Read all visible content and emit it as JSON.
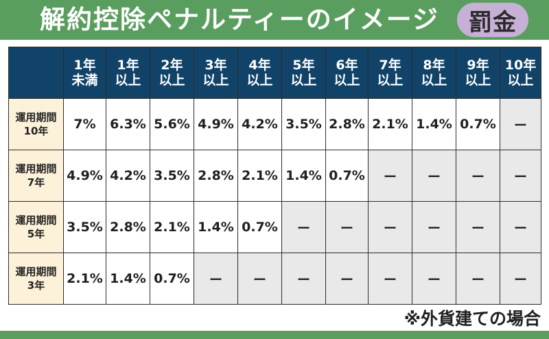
{
  "header": {
    "title": "解約控除ペナルティーのイメージ",
    "badge": "罰金",
    "banner_color": "#5a9e5f",
    "badge_color": "#c7b0d6"
  },
  "table": {
    "header_color": "#114369",
    "row_header_color": "#fdf1d9",
    "empty_cell_color": "#e9e9e9",
    "columns": [
      [
        "1年",
        "未満"
      ],
      [
        "1年",
        "以上"
      ],
      [
        "2年",
        "以上"
      ],
      [
        "3年",
        "以上"
      ],
      [
        "4年",
        "以上"
      ],
      [
        "5年",
        "以上"
      ],
      [
        "6年",
        "以上"
      ],
      [
        "7年",
        "以上"
      ],
      [
        "8年",
        "以上"
      ],
      [
        "9年",
        "以上"
      ],
      [
        "10年",
        "以上"
      ]
    ],
    "rows": [
      {
        "label": [
          "運用期間",
          "10年"
        ],
        "values": [
          "7%",
          "6.3%",
          "5.6%",
          "4.9%",
          "4.2%",
          "3.5%",
          "2.8%",
          "2.1%",
          "1.4%",
          "0.7%",
          "ー"
        ]
      },
      {
        "label": [
          "運用期間",
          "7年"
        ],
        "values": [
          "4.9%",
          "4.2%",
          "3.5%",
          "2.8%",
          "2.1%",
          "1.4%",
          "0.7%",
          "ー",
          "ー",
          "ー",
          "ー"
        ]
      },
      {
        "label": [
          "運用期間",
          "5年"
        ],
        "values": [
          "3.5%",
          "2.8%",
          "2.1%",
          "1.4%",
          "0.7%",
          "ー",
          "ー",
          "ー",
          "ー",
          "ー",
          "ー"
        ]
      },
      {
        "label": [
          "運用期間",
          "3年"
        ],
        "values": [
          "2.1%",
          "1.4%",
          "0.7%",
          "ー",
          "ー",
          "ー",
          "ー",
          "ー",
          "ー",
          "ー",
          "ー"
        ]
      }
    ]
  },
  "footnote": "※外貨建ての場合"
}
